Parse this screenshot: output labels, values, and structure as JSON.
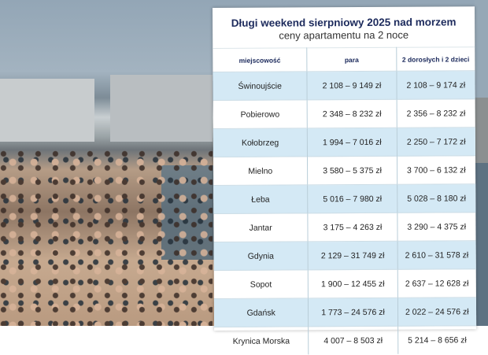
{
  "title": "Długi weekend sierpniowy 2025 nad morzem",
  "subtitle": "ceny apartamentu na 2 noce",
  "columns": [
    "miejscowość",
    "para",
    "2 dorosłych i 2 dzieci"
  ],
  "rows": [
    [
      "Świnoujście",
      "2 108 – 9 149 zł",
      "2 108 – 9 174 zł"
    ],
    [
      "Pobierowo",
      "2 348 – 8 232 zł",
      "2 356 – 8 232 zł"
    ],
    [
      "Kołobrzeg",
      "1 994 – 7 016 zł",
      "2 250 – 7 172 zł"
    ],
    [
      "Mielno",
      "3 580 – 5 375 zł",
      "3 700 – 6 132 zł"
    ],
    [
      "Łeba",
      "5 016 – 7 980 zł",
      "5 028 – 8 180 zł"
    ],
    [
      "Jantar",
      "3 175 – 4 263 zł",
      "3 290 – 4 375 zł"
    ],
    [
      "Gdynia",
      "2 129 – 31 749 zł",
      "2 610 – 31 578 zł"
    ],
    [
      "Sopot",
      "1 900 – 12 455 zł",
      "2 637 – 12 628 zł"
    ],
    [
      "Gdańsk",
      "1 773 – 24 576 zł",
      "2 022 – 24 576 zł"
    ],
    [
      "Krynica Morska",
      "4 007 – 8 503 zł",
      "5 214 – 8 656 zł"
    ]
  ],
  "colors": {
    "title": "#1c2a5c",
    "row_highlight": "#d4e9f5"
  }
}
